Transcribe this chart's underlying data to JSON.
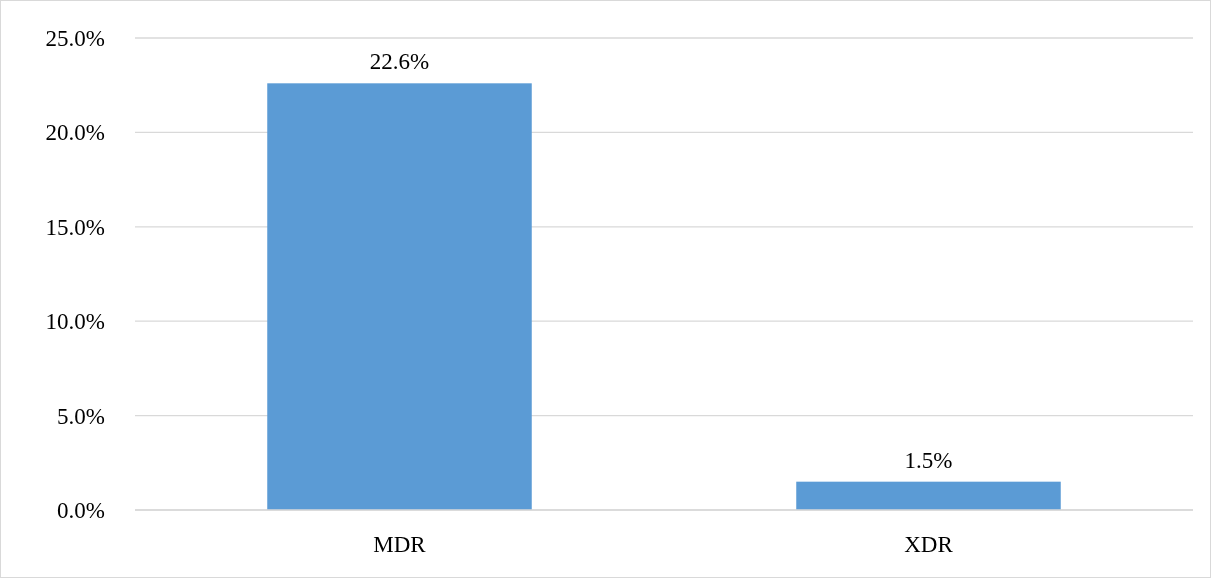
{
  "chart_data": {
    "type": "bar",
    "categories": [
      "MDR",
      "XDR"
    ],
    "values": [
      22.6,
      1.5
    ],
    "value_labels": [
      "22.6%",
      "1.5%"
    ],
    "color": "#5b9bd5",
    "ylim": [
      0,
      25
    ],
    "yticks": [
      {
        "value": 0,
        "label": "0.0%"
      },
      {
        "value": 5,
        "label": "5.0%"
      },
      {
        "value": 10,
        "label": "10.0%"
      },
      {
        "value": 15,
        "label": "15.0%"
      },
      {
        "value": 20,
        "label": "20.0%"
      },
      {
        "value": 25,
        "label": "25.0%"
      }
    ],
    "grid": "y"
  }
}
